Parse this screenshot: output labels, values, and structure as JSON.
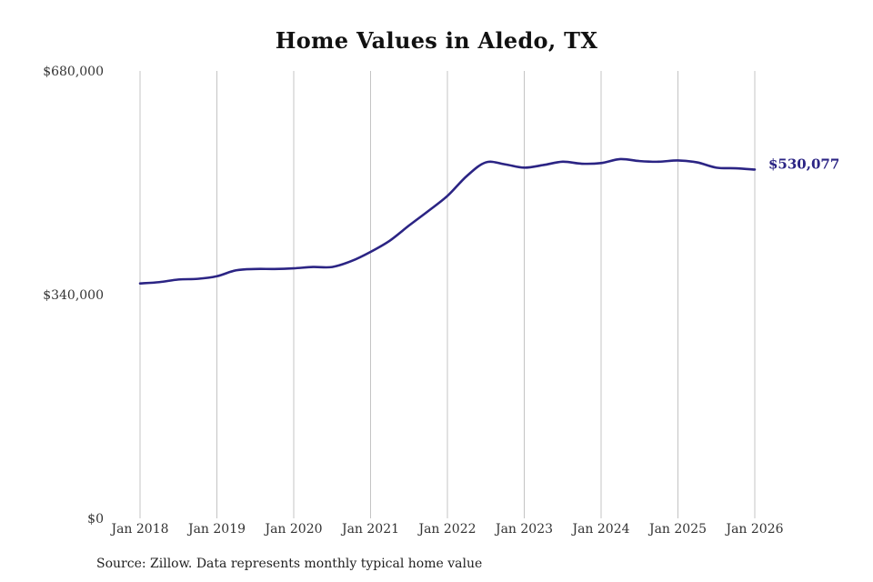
{
  "chart_data": {
    "type": "line",
    "title": "Home Values in Aledo, TX",
    "xlabel": "",
    "ylabel": "",
    "x_ticks": [
      "Jan 2018",
      "Jan 2019",
      "Jan 2020",
      "Jan 2021",
      "Jan 2022",
      "Jan 2023",
      "Jan 2024",
      "Jan 2025",
      "Jan 2026"
    ],
    "y_ticks": [
      "$0",
      "$340,000",
      "$680,000"
    ],
    "ylim": [
      0,
      680000
    ],
    "grid": "vertical",
    "line_color": "#2b2484",
    "end_label": "$530,077",
    "series": [
      {
        "name": "",
        "points": [
          [
            "2018-01",
            357000
          ],
          [
            "2018-04",
            359000
          ],
          [
            "2018-07",
            363000
          ],
          [
            "2018-10",
            364000
          ],
          [
            "2019-01",
            368000
          ],
          [
            "2019-04",
            377000
          ],
          [
            "2019-07",
            379000
          ],
          [
            "2019-10",
            379000
          ],
          [
            "2020-01",
            380000
          ],
          [
            "2020-04",
            382000
          ],
          [
            "2020-07",
            382000
          ],
          [
            "2020-10",
            391000
          ],
          [
            "2021-01",
            405000
          ],
          [
            "2021-04",
            422000
          ],
          [
            "2021-07",
            445000
          ],
          [
            "2021-10",
            467000
          ],
          [
            "2022-01",
            490000
          ],
          [
            "2022-04",
            520000
          ],
          [
            "2022-07",
            541000
          ],
          [
            "2022-10",
            538000
          ],
          [
            "2023-01",
            533000
          ],
          [
            "2023-04",
            537000
          ],
          [
            "2023-07",
            542000
          ],
          [
            "2023-10",
            539000
          ],
          [
            "2024-01",
            540000
          ],
          [
            "2024-04",
            546000
          ],
          [
            "2024-07",
            543000
          ],
          [
            "2024-10",
            542000
          ],
          [
            "2025-01",
            544000
          ],
          [
            "2025-04",
            541000
          ],
          [
            "2025-07",
            533000
          ],
          [
            "2025-10",
            532000
          ],
          [
            "2026-01",
            530077
          ]
        ]
      }
    ]
  },
  "source": "Source: Zillow. Data represents monthly typical home value"
}
